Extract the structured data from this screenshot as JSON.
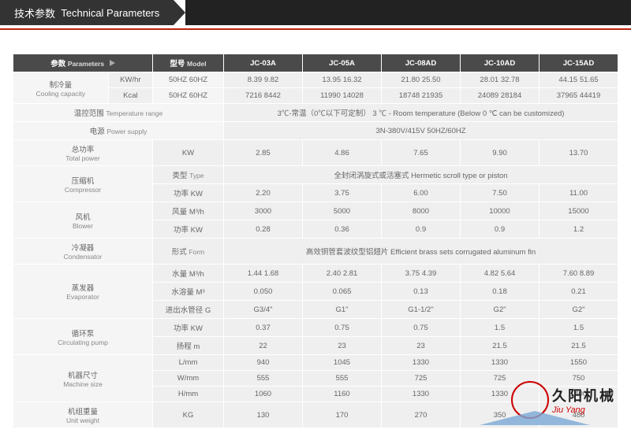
{
  "header": {
    "title_cn": "技术参数",
    "title_en": "Technical Parameters"
  },
  "columns": {
    "param_cn": "参数",
    "param_en": "Parameters",
    "model_cn": "型号",
    "model_en": "Model",
    "models": [
      "JC-03A",
      "JC-05A",
      "JC-08AD",
      "JC-10AD",
      "JC-15AD"
    ]
  },
  "rows": {
    "cooling": {
      "label_cn": "制冷量",
      "label_en": "Cooling capacity",
      "sub1": "KW/hr",
      "sub2": "Kcal",
      "hz": "50HZ  60HZ",
      "kwhr": [
        "8.39 9.82",
        "13.95 16.32",
        "21.80 25.50",
        "28.01 32.78",
        "44.15 51.65"
      ],
      "kcal": [
        "7216 8442",
        "11990 14028",
        "18748 21935",
        "24089 28184",
        "37965 44419"
      ]
    },
    "temp": {
      "label_cn": "温控范围",
      "label_en": "Temperature range",
      "value": "3℃-常温（0℃以下可定制）  3 ℃ - Room temperature (Below 0 ℃ can be customized)"
    },
    "power_supply": {
      "label_cn": "电源",
      "label_en": "Power supply",
      "value": "3N-380V/415V 50HZ/60HZ"
    },
    "total_power": {
      "label_cn": "总功率",
      "label_en": "Total power",
      "unit": "KW",
      "vals": [
        "2.85",
        "4.86",
        "7.65",
        "9.90",
        "13.70"
      ]
    },
    "compressor": {
      "label_cn": "压缩机",
      "label_en": "Compressor",
      "type_cn": "类型",
      "type_en": "Type",
      "type_val": "全封闭涡旋式或活塞式 Hermetic scroll type or piston",
      "pwr_cn": "功率",
      "pwr_unit": "KW",
      "pwr": [
        "2.20",
        "3.75",
        "6.00",
        "7.50",
        "11.00"
      ]
    },
    "blower": {
      "label_cn": "风机",
      "label_en": "Blower",
      "vol_cn": "风量",
      "vol_unit": "M³/h",
      "vol": [
        "3000",
        "5000",
        "8000",
        "10000",
        "15000"
      ],
      "pwr_cn": "功率",
      "pwr_unit": "KW",
      "pwr": [
        "0.28",
        "0.36",
        "0.9",
        "0.9",
        "1.2"
      ]
    },
    "condensator": {
      "label_cn": "冷凝器",
      "label_en": "Condensator",
      "form_cn": "形式",
      "form_en": "Form",
      "value": "高效铜管套波纹型铝翅片 Efficient brass sets corrugated aluminum fin"
    },
    "evaporator": {
      "label_cn": "蒸发器",
      "label_en": "Evaporator",
      "wq_cn": "水量",
      "wq_unit": "M³/h",
      "wq": [
        "1.44 1.68",
        "2.40 2.81",
        "3.75 4.39",
        "4.82 5.64",
        "7.60 8.89"
      ],
      "ws_cn": "水溶量",
      "ws_unit": "M³",
      "ws": [
        "0.050",
        "0.065",
        "0.13",
        "0.18",
        "0.21"
      ],
      "pipe_cn": "进出水管径",
      "pipe_unit": "G",
      "pipe": [
        "G3/4\"",
        "G1\"",
        "G1-1/2\"",
        "G2\"",
        "G2\""
      ]
    },
    "pump": {
      "label_cn": "循环泵",
      "label_en": "Circulating pump",
      "pwr_cn": "功率",
      "pwr_unit": "KW",
      "pwr": [
        "0.37",
        "0.75",
        "0.75",
        "1.5",
        "1.5"
      ],
      "head_cn": "扬程",
      "head_unit": "m",
      "head": [
        "22",
        "23",
        "23",
        "21.5",
        "21.5"
      ]
    },
    "size": {
      "label_cn": "机器尺寸",
      "label_en": "Machine size",
      "l_unit": "L/mm",
      "l": [
        "940",
        "1045",
        "1330",
        "1330",
        "1550"
      ],
      "w_unit": "W/mm",
      "w": [
        "555",
        "555",
        "725",
        "725",
        "750"
      ],
      "h_unit": "H/mm",
      "h": [
        "1060",
        "1160",
        "1330",
        "1330",
        "1400"
      ]
    },
    "weight": {
      "label_cn": "机组重量",
      "label_en": "Unit weight",
      "unit": "KG",
      "vals": [
        "130",
        "170",
        "270",
        "350",
        "480"
      ]
    }
  },
  "watermark": {
    "cn": "久阳机械",
    "en": "Jiu Yang"
  },
  "colors": {
    "header_bg": "#333333",
    "red_line": "#bb2211",
    "dark_cell": "#4a4a4a",
    "light_cell": "#f5f5f5",
    "lighter_cell": "#efefef",
    "text": "#666666",
    "wm_red": "#cc0000",
    "wm_tri": "#7aa9d6"
  }
}
